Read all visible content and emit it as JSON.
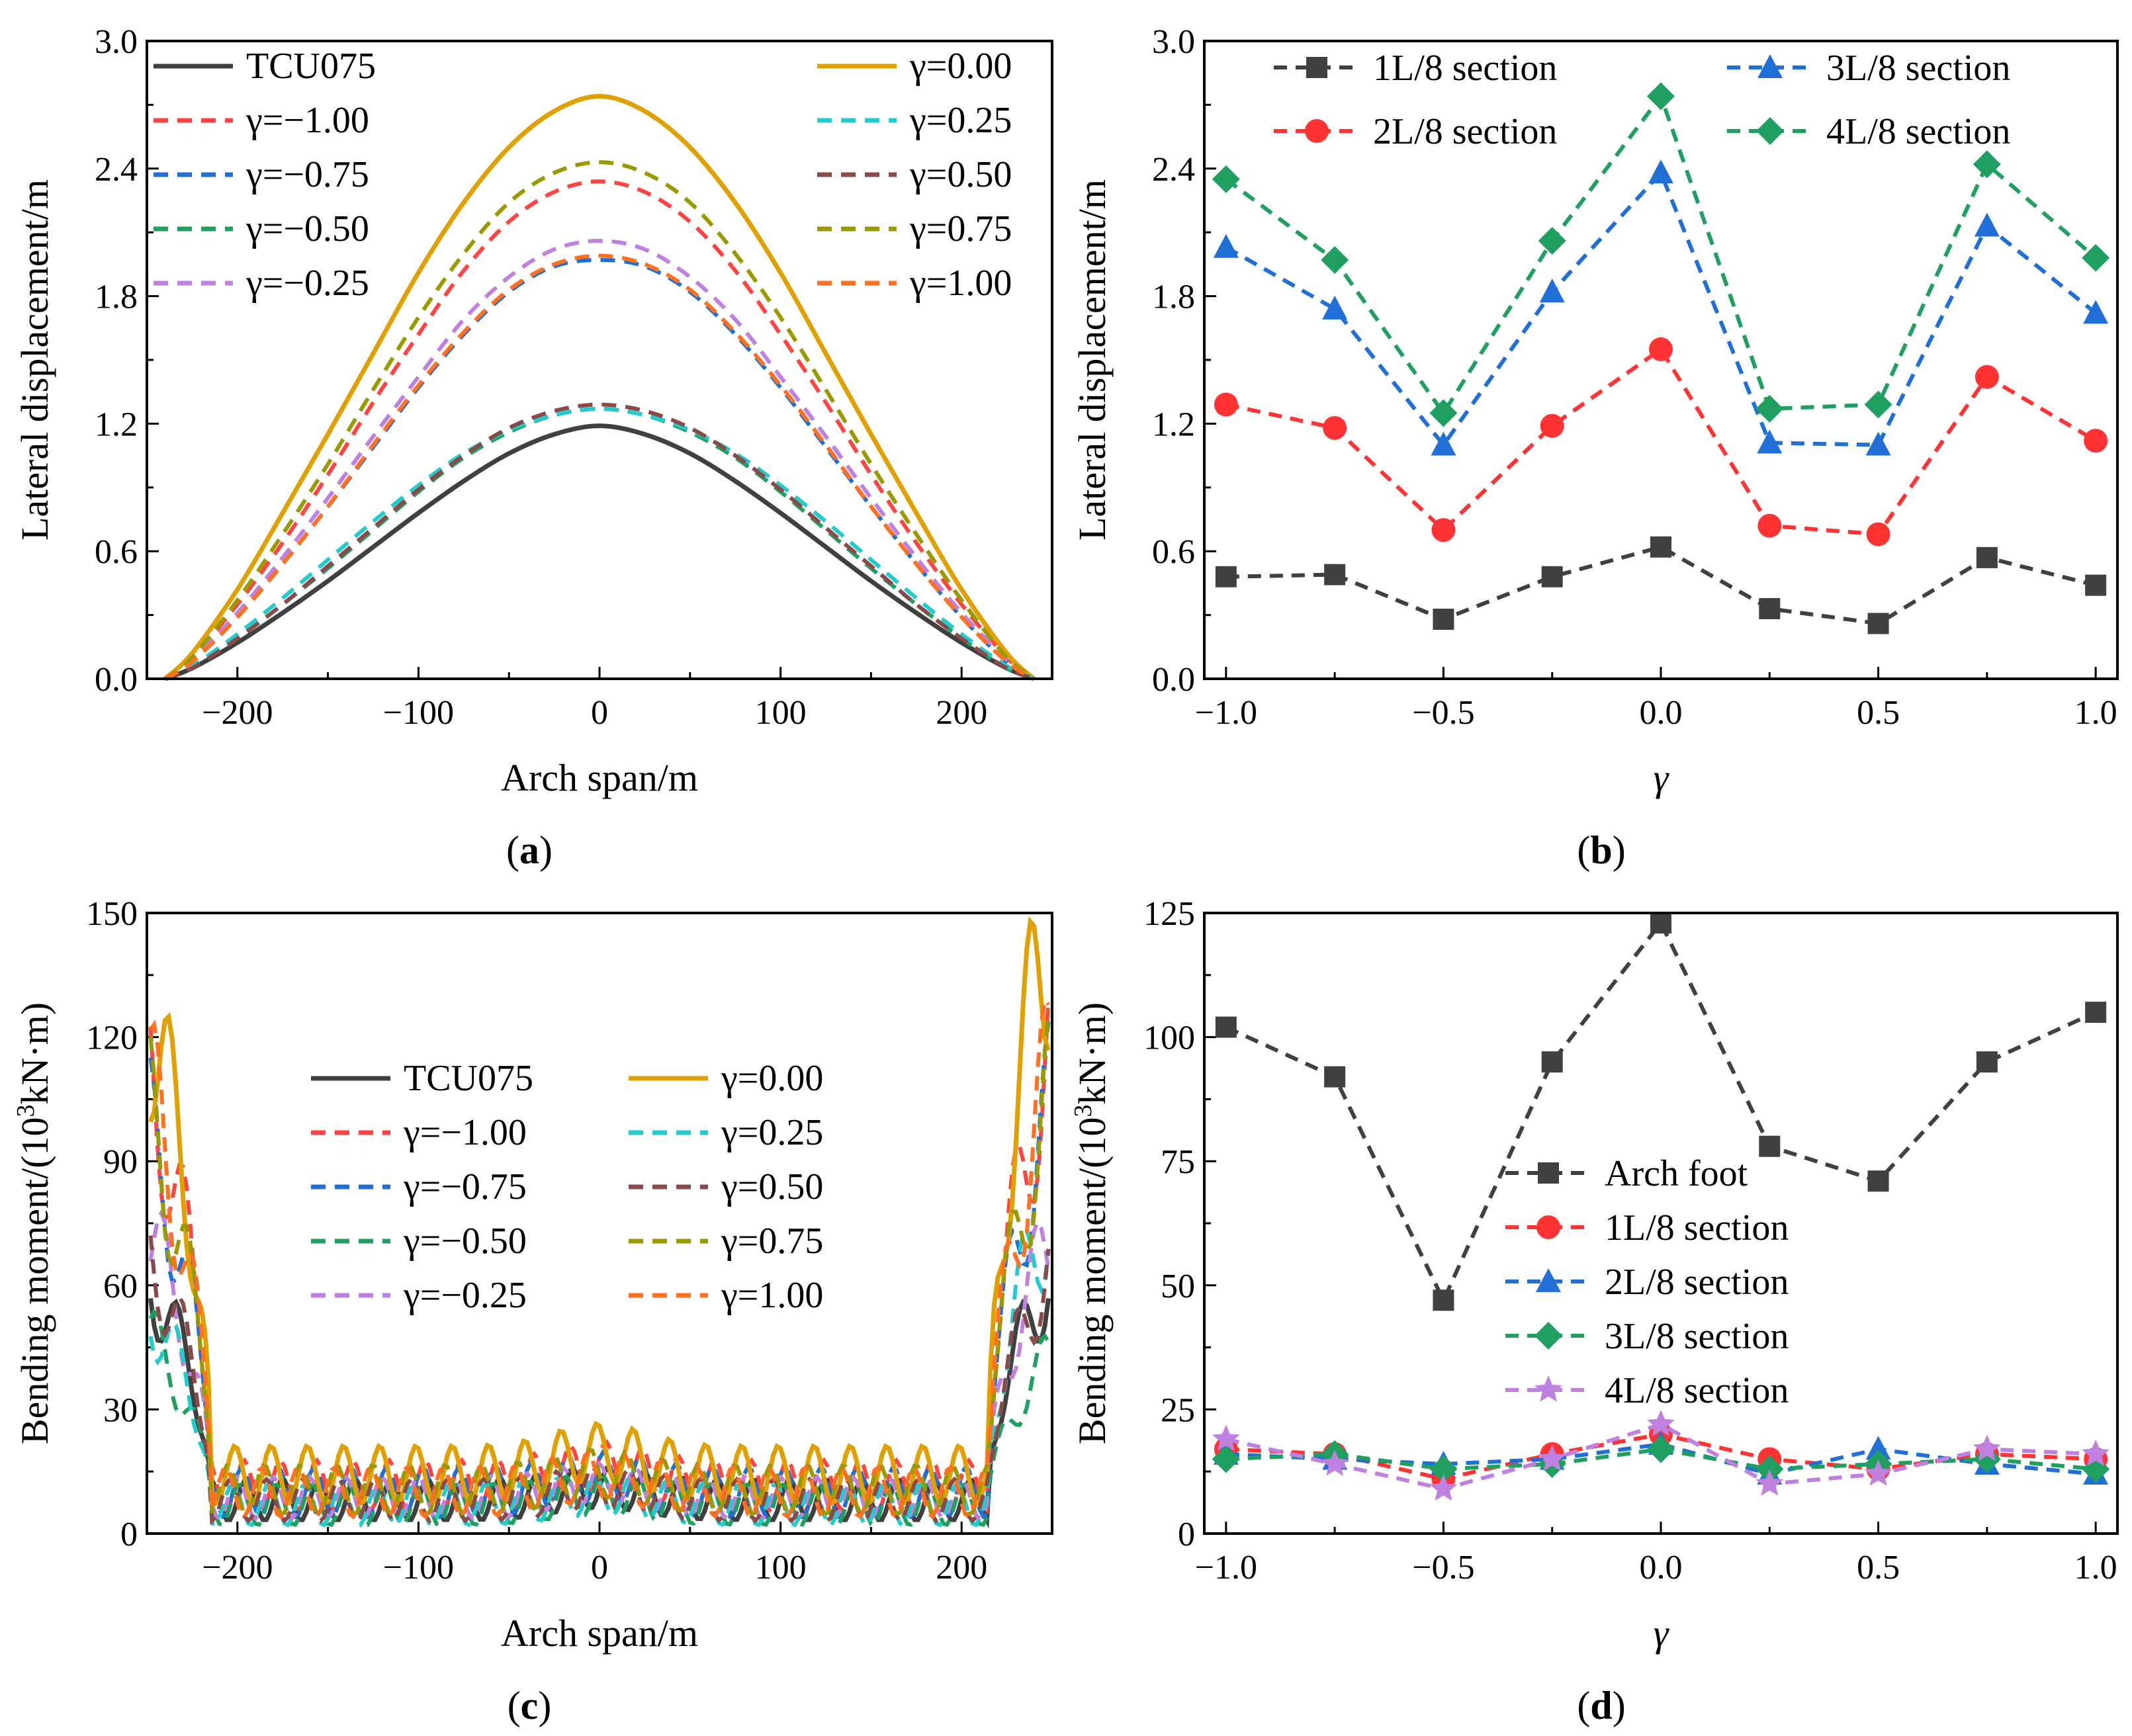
{
  "chart_data": [
    {
      "id": "a",
      "type": "line",
      "caption": "(a)",
      "caption_letter": "a",
      "xlabel": "Arch span/m",
      "ylabel": "Lateral displacement/m",
      "xlim": [
        -250,
        250
      ],
      "ylim": [
        0,
        3.0
      ],
      "xticks": [
        -200,
        -100,
        0,
        100,
        200
      ],
      "xtick_labels": [
        "−200",
        "−100",
        "0",
        "100",
        "200"
      ],
      "yticks": [
        0,
        0.6,
        1.2,
        1.8,
        2.4,
        3.0
      ],
      "ytick_labels": [
        "0.0",
        "0.6",
        "1.2",
        "1.8",
        "2.4",
        "3.0"
      ],
      "x_sample": [
        -240,
        -225,
        -200,
        -175,
        -150,
        -125,
        -100,
        -75,
        -50,
        -25,
        0,
        25,
        50,
        75,
        100,
        125,
        150,
        175,
        200,
        225,
        240
      ],
      "series": [
        {
          "name": "TCU075",
          "color": "#404040",
          "dash": "solid",
          "values": [
            0,
            0.05,
            0.17,
            0.31,
            0.46,
            0.62,
            0.78,
            0.93,
            1.06,
            1.15,
            1.19,
            1.15,
            1.06,
            0.93,
            0.78,
            0.62,
            0.46,
            0.31,
            0.17,
            0.05,
            0
          ]
        },
        {
          "name": "γ=−1.00",
          "color": "#ff4444",
          "dash": "dash",
          "values": [
            0,
            0.1,
            0.35,
            0.64,
            0.96,
            1.3,
            1.62,
            1.92,
            2.15,
            2.29,
            2.34,
            2.29,
            2.15,
            1.92,
            1.62,
            1.3,
            0.96,
            0.64,
            0.35,
            0.1,
            0
          ]
        },
        {
          "name": "γ=−0.75",
          "color": "#1f6fd6",
          "dash": "dash",
          "values": [
            0,
            0.08,
            0.29,
            0.54,
            0.81,
            1.09,
            1.37,
            1.62,
            1.82,
            1.94,
            1.97,
            1.94,
            1.82,
            1.62,
            1.37,
            1.09,
            0.81,
            0.54,
            0.29,
            0.08,
            0
          ]
        },
        {
          "name": "γ=−0.50",
          "color": "#1fa060",
          "dash": "dash",
          "values": [
            0,
            0.05,
            0.19,
            0.35,
            0.52,
            0.7,
            0.88,
            1.04,
            1.16,
            1.24,
            1.27,
            1.24,
            1.16,
            1.04,
            0.88,
            0.7,
            0.52,
            0.35,
            0.19,
            0.05,
            0
          ]
        },
        {
          "name": "γ=−0.25",
          "color": "#c080e0",
          "dash": "dash",
          "values": [
            0,
            0.09,
            0.31,
            0.57,
            0.85,
            1.14,
            1.42,
            1.69,
            1.89,
            2.02,
            2.06,
            2.02,
            1.89,
            1.69,
            1.42,
            1.14,
            0.85,
            0.57,
            0.31,
            0.09,
            0
          ]
        },
        {
          "name": "γ=0.00",
          "color": "#e0a000",
          "dash": "solid",
          "values": [
            0,
            0.12,
            0.42,
            0.78,
            1.15,
            1.53,
            1.91,
            2.24,
            2.5,
            2.67,
            2.74,
            2.67,
            2.5,
            2.24,
            1.91,
            1.53,
            1.15,
            0.78,
            0.42,
            0.12,
            0
          ]
        },
        {
          "name": "γ=0.25",
          "color": "#22cccc",
          "dash": "dash",
          "values": [
            0,
            0.06,
            0.21,
            0.38,
            0.56,
            0.74,
            0.91,
            1.06,
            1.17,
            1.24,
            1.27,
            1.24,
            1.17,
            1.06,
            0.91,
            0.74,
            0.56,
            0.38,
            0.21,
            0.06,
            0
          ]
        },
        {
          "name": "γ=0.50",
          "color": "#8b4a4a",
          "dash": "dash",
          "values": [
            0,
            0.05,
            0.19,
            0.35,
            0.53,
            0.71,
            0.89,
            1.05,
            1.18,
            1.26,
            1.29,
            1.26,
            1.18,
            1.05,
            0.89,
            0.71,
            0.53,
            0.35,
            0.19,
            0.05,
            0
          ]
        },
        {
          "name": "γ=0.75",
          "color": "#999900",
          "dash": "dash",
          "values": [
            0,
            0.1,
            0.37,
            0.68,
            1.01,
            1.36,
            1.7,
            2.0,
            2.24,
            2.38,
            2.43,
            2.38,
            2.24,
            2.0,
            1.7,
            1.36,
            1.01,
            0.68,
            0.37,
            0.1,
            0
          ]
        },
        {
          "name": "γ=1.00",
          "color": "#ff7020",
          "dash": "dash",
          "values": [
            0,
            0.08,
            0.29,
            0.54,
            0.81,
            1.1,
            1.38,
            1.63,
            1.83,
            1.95,
            1.99,
            1.95,
            1.83,
            1.63,
            1.38,
            1.1,
            0.81,
            0.54,
            0.29,
            0.08,
            0
          ]
        }
      ]
    },
    {
      "id": "b",
      "type": "line",
      "caption": "(b)",
      "caption_letter": "b",
      "xlabel": "γ",
      "ylabel": "Lateral displacement/m",
      "xlim": [
        -1.05,
        1.05
      ],
      "ylim": [
        0,
        3.0
      ],
      "xticks": [
        -1.0,
        -0.5,
        0.0,
        0.5,
        1.0
      ],
      "xtick_labels": [
        "−1.0",
        "−0.5",
        "0.0",
        "0.5",
        "1.0"
      ],
      "yticks": [
        0,
        0.6,
        1.2,
        1.8,
        2.4,
        3.0
      ],
      "ytick_labels": [
        "0.0",
        "0.6",
        "1.2",
        "1.8",
        "2.4",
        "3.0"
      ],
      "x": [
        -1.0,
        -0.75,
        -0.5,
        -0.25,
        0.0,
        0.25,
        0.5,
        0.75,
        1.0
      ],
      "series": [
        {
          "name": "1L/8 section",
          "color": "#404040",
          "marker": "square",
          "values": [
            0.48,
            0.49,
            0.28,
            0.48,
            0.62,
            0.33,
            0.26,
            0.57,
            0.44
          ]
        },
        {
          "name": "2L/8 section",
          "color": "#ff3333",
          "marker": "circle",
          "values": [
            1.29,
            1.18,
            0.7,
            1.19,
            1.55,
            0.72,
            0.68,
            1.42,
            1.12
          ]
        },
        {
          "name": "3L/8 section",
          "color": "#1f6fd6",
          "marker": "triangle",
          "values": [
            2.03,
            1.74,
            1.1,
            1.82,
            2.38,
            1.11,
            1.1,
            2.13,
            1.72
          ]
        },
        {
          "name": "4L/8 section",
          "color": "#1fa060",
          "marker": "diamond",
          "values": [
            2.35,
            1.97,
            1.25,
            2.06,
            2.74,
            1.27,
            1.29,
            2.42,
            1.98
          ]
        }
      ]
    },
    {
      "id": "c",
      "type": "line",
      "caption": "(c)",
      "caption_letter": "c",
      "xlabel": "Arch span/m",
      "ylabel_main": "Bending moment/(10",
      "ylabel_sup": "3",
      "ylabel_tail": "kN·m)",
      "xlim": [
        -250,
        250
      ],
      "ylim": [
        0,
        150
      ],
      "xticks": [
        -200,
        -100,
        0,
        100,
        200
      ],
      "xtick_labels": [
        "−200",
        "−100",
        "0",
        "100",
        "200"
      ],
      "yticks": [
        0,
        30,
        60,
        90,
        120,
        150
      ],
      "ytick_labels": [
        "0",
        "30",
        "60",
        "90",
        "120",
        "150"
      ],
      "series": [
        {
          "name": "TCU075",
          "color": "#404040",
          "dash": "solid",
          "edge_left": 62,
          "edge_right": 62,
          "mid": 12,
          "osc": 5
        },
        {
          "name": "γ=−1.00",
          "color": "#ff4444",
          "dash": "dash",
          "edge_left": 110,
          "edge_right": 116,
          "mid": 18,
          "osc": 6
        },
        {
          "name": "γ=−0.75",
          "color": "#1f6fd6",
          "dash": "dash",
          "edge_left": 95,
          "edge_right": 102,
          "mid": 15,
          "osc": 6
        },
        {
          "name": "γ=−0.50",
          "color": "#1fa060",
          "dash": "dash",
          "edge_left": 47,
          "edge_right": 42,
          "mid": 10,
          "osc": 5
        },
        {
          "name": "γ=−0.25",
          "color": "#c080e0",
          "dash": "dash",
          "edge_left": 72,
          "edge_right": 70,
          "mid": 13,
          "osc": 5
        },
        {
          "name": "γ=0.00",
          "color": "#e0a000",
          "dash": "solid",
          "edge_left": 125,
          "edge_right": 148,
          "mid": 22,
          "osc": 7
        },
        {
          "name": "γ=0.25",
          "color": "#22cccc",
          "dash": "dash",
          "edge_left": 55,
          "edge_right": 80,
          "mid": 10,
          "osc": 5
        },
        {
          "name": "γ=0.50",
          "color": "#8b4a4a",
          "dash": "dash",
          "edge_left": 68,
          "edge_right": 65,
          "mid": 12,
          "osc": 5
        },
        {
          "name": "γ=0.75",
          "color": "#999900",
          "dash": "dash",
          "edge_left": 100,
          "edge_right": 105,
          "mid": 16,
          "osc": 6
        },
        {
          "name": "γ=1.00",
          "color": "#ff7020",
          "dash": "dash",
          "edge_left": 105,
          "edge_right": 110,
          "mid": 15,
          "osc": 6
        }
      ]
    },
    {
      "id": "d",
      "type": "line",
      "caption": "(d)",
      "caption_letter": "d",
      "xlabel": "γ",
      "ylabel_main": "Bending moment/(10",
      "ylabel_sup": "3",
      "ylabel_tail": "kN·m)",
      "xlim": [
        -1.05,
        1.05
      ],
      "ylim": [
        0,
        125
      ],
      "xticks": [
        -1.0,
        -0.5,
        0.0,
        0.5,
        1.0
      ],
      "xtick_labels": [
        "−1.0",
        "−0.5",
        "0.0",
        "0.5",
        "1.0"
      ],
      "yticks": [
        0,
        25,
        50,
        75,
        100,
        125
      ],
      "ytick_labels": [
        "0",
        "25",
        "50",
        "75",
        "100",
        "125"
      ],
      "x": [
        -1.0,
        -0.75,
        -0.5,
        -0.25,
        0.0,
        0.25,
        0.5,
        0.75,
        1.0
      ],
      "series": [
        {
          "name": "Arch foot",
          "color": "#404040",
          "marker": "square",
          "values": [
            102,
            92,
            47,
            95,
            123,
            78,
            71,
            95,
            105
          ]
        },
        {
          "name": "1L/8 section",
          "color": "#ff3333",
          "marker": "circle",
          "values": [
            17,
            16,
            11,
            16,
            20,
            15,
            13,
            16,
            15
          ]
        },
        {
          "name": "2L/8 section",
          "color": "#1f6fd6",
          "marker": "triangle",
          "values": [
            16,
            15,
            14,
            15,
            18,
            12,
            17,
            14,
            12
          ]
        },
        {
          "name": "3L/8 section",
          "color": "#1fa060",
          "marker": "diamond",
          "values": [
            15,
            16,
            13,
            14,
            17,
            13,
            14,
            15,
            13
          ]
        },
        {
          "name": "4L/8 section",
          "color": "#c080e0",
          "marker": "star",
          "values": [
            19,
            14,
            9,
            15,
            22,
            10,
            12,
            17,
            16
          ]
        }
      ]
    }
  ]
}
